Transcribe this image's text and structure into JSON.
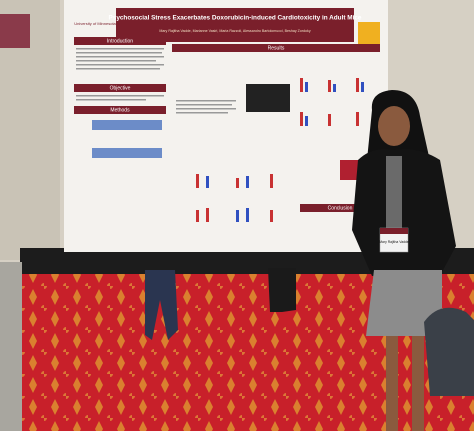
{
  "poster": {
    "logo": "University of Minnesota",
    "title": "Psychosocial Stress Exacerbates Doxorubicin-induced Cardiotoxicity in Adult Mice",
    "authors": "Mary Rajitha Vadde, Marianne Vasiri, Maria Razzoli, Alessandro Bartolomucci, Beshay Zordoky",
    "sections": {
      "introduction": "Introduction",
      "objective": "Objective",
      "methods": "Methods",
      "results": "Results",
      "conclusion": "Conclusion"
    }
  },
  "badge": {
    "name": "Mary Rajitha Vadde"
  }
}
